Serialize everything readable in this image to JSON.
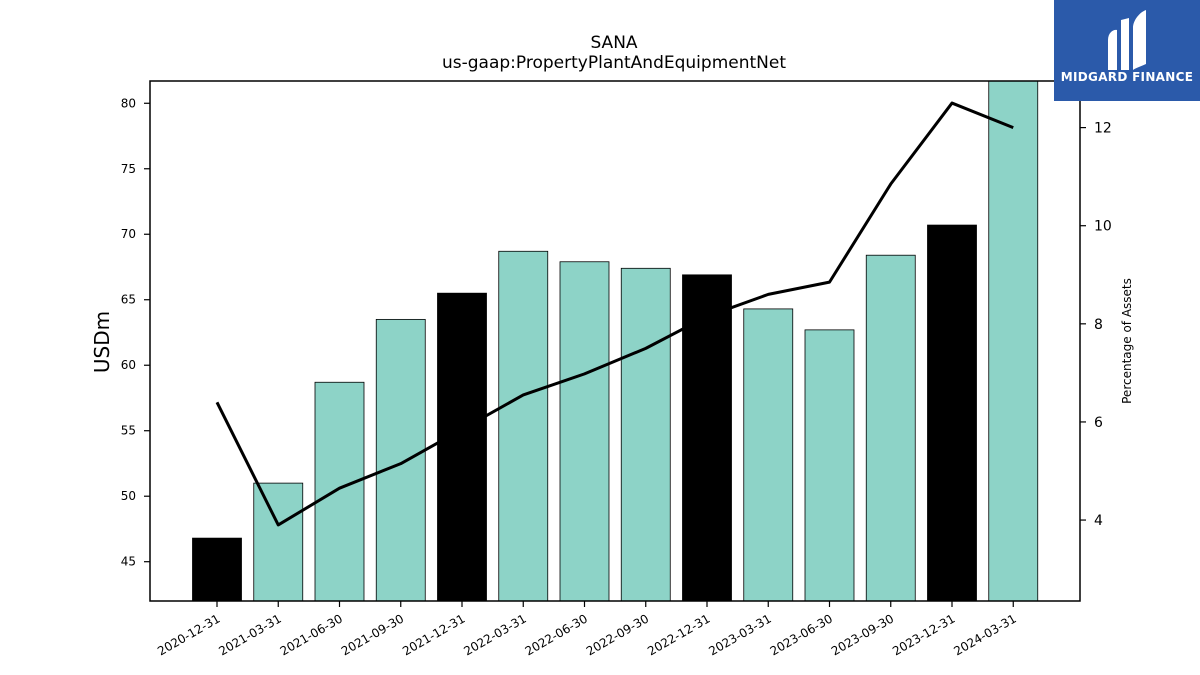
{
  "chart_data": {
    "type": "bar",
    "title": "SANA",
    "subtitle": "us-gaap:PropertyPlantAndEquipmentNet",
    "ylabel": "USDm",
    "ylabel_right": "Percentage of Assets",
    "categories": [
      "2020-12-31",
      "2021-03-31",
      "2021-06-30",
      "2021-09-30",
      "2021-12-31",
      "2022-03-31",
      "2022-06-30",
      "2022-09-30",
      "2022-12-31",
      "2023-03-31",
      "2023-06-30",
      "2023-09-30",
      "2023-12-31",
      "2024-03-31"
    ],
    "series": [
      {
        "kind": "bar",
        "axis": "left",
        "values": [
          46.8,
          51.0,
          58.7,
          63.5,
          65.5,
          68.7,
          67.9,
          67.4,
          66.9,
          64.3,
          62.7,
          68.4,
          70.7,
          81.7
        ],
        "colors": [
          "#000000",
          "#8dd3c7",
          "#8dd3c7",
          "#8dd3c7",
          "#000000",
          "#8dd3c7",
          "#8dd3c7",
          "#8dd3c7",
          "#000000",
          "#8dd3c7",
          "#8dd3c7",
          "#8dd3c7",
          "#000000",
          "#8dd3c7"
        ]
      },
      {
        "kind": "line",
        "axis": "right",
        "color": "#000000",
        "values": [
          6.4,
          3.9,
          4.65,
          5.15,
          5.85,
          6.55,
          6.98,
          7.5,
          8.15,
          8.6,
          8.85,
          10.85,
          12.5,
          12.0
        ]
      }
    ],
    "ylim": [
      42,
      81.7
    ],
    "yticks": [
      45,
      50,
      55,
      60,
      65,
      70,
      75,
      80
    ],
    "ylim_right": [
      2.35,
      12.95
    ],
    "yticks_right": [
      4,
      6,
      8,
      10,
      12
    ],
    "grid": false
  },
  "logo": {
    "text": "MIDGARD FINANCE",
    "background": "#2b5aaa"
  }
}
